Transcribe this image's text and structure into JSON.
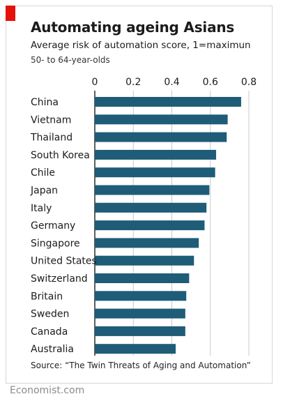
{
  "header": {
    "title": "Automating ageing Asians",
    "subtitle": "Average risk of automation score, 1=maximun",
    "subtitle2": "50- to 64-year-olds"
  },
  "footer": {
    "source": "Source: “The Twin Threats of Aging and Automation”",
    "brand": "Economist.com"
  },
  "colors": {
    "bar": "#1e5c78",
    "grid": "#c9c9c9",
    "axis": "#1b1b1b",
    "accent": "#e3120b"
  },
  "chart_data": {
    "type": "bar",
    "orientation": "horizontal",
    "title": "Automating ageing Asians",
    "subtitle": "Average risk of automation score, 1=maximun",
    "categories": [
      "China",
      "Vietnam",
      "Thailand",
      "South Korea",
      "Chile",
      "Japan",
      "Italy",
      "Germany",
      "Singapore",
      "United States",
      "Switzerland",
      "Britain",
      "Sweden",
      "Canada",
      "Australia"
    ],
    "values": [
      0.76,
      0.69,
      0.685,
      0.63,
      0.625,
      0.595,
      0.58,
      0.57,
      0.54,
      0.515,
      0.49,
      0.475,
      0.47,
      0.47,
      0.42
    ],
    "xlim": [
      0,
      0.8
    ],
    "xticks": [
      0,
      0.2,
      0.4,
      0.6,
      0.8
    ],
    "xtick_labels": [
      "0",
      "0.2",
      "0.4",
      "0.6",
      "0.8"
    ],
    "xlabel": "",
    "ylabel": "",
    "grid": true,
    "axis_position": "top"
  }
}
